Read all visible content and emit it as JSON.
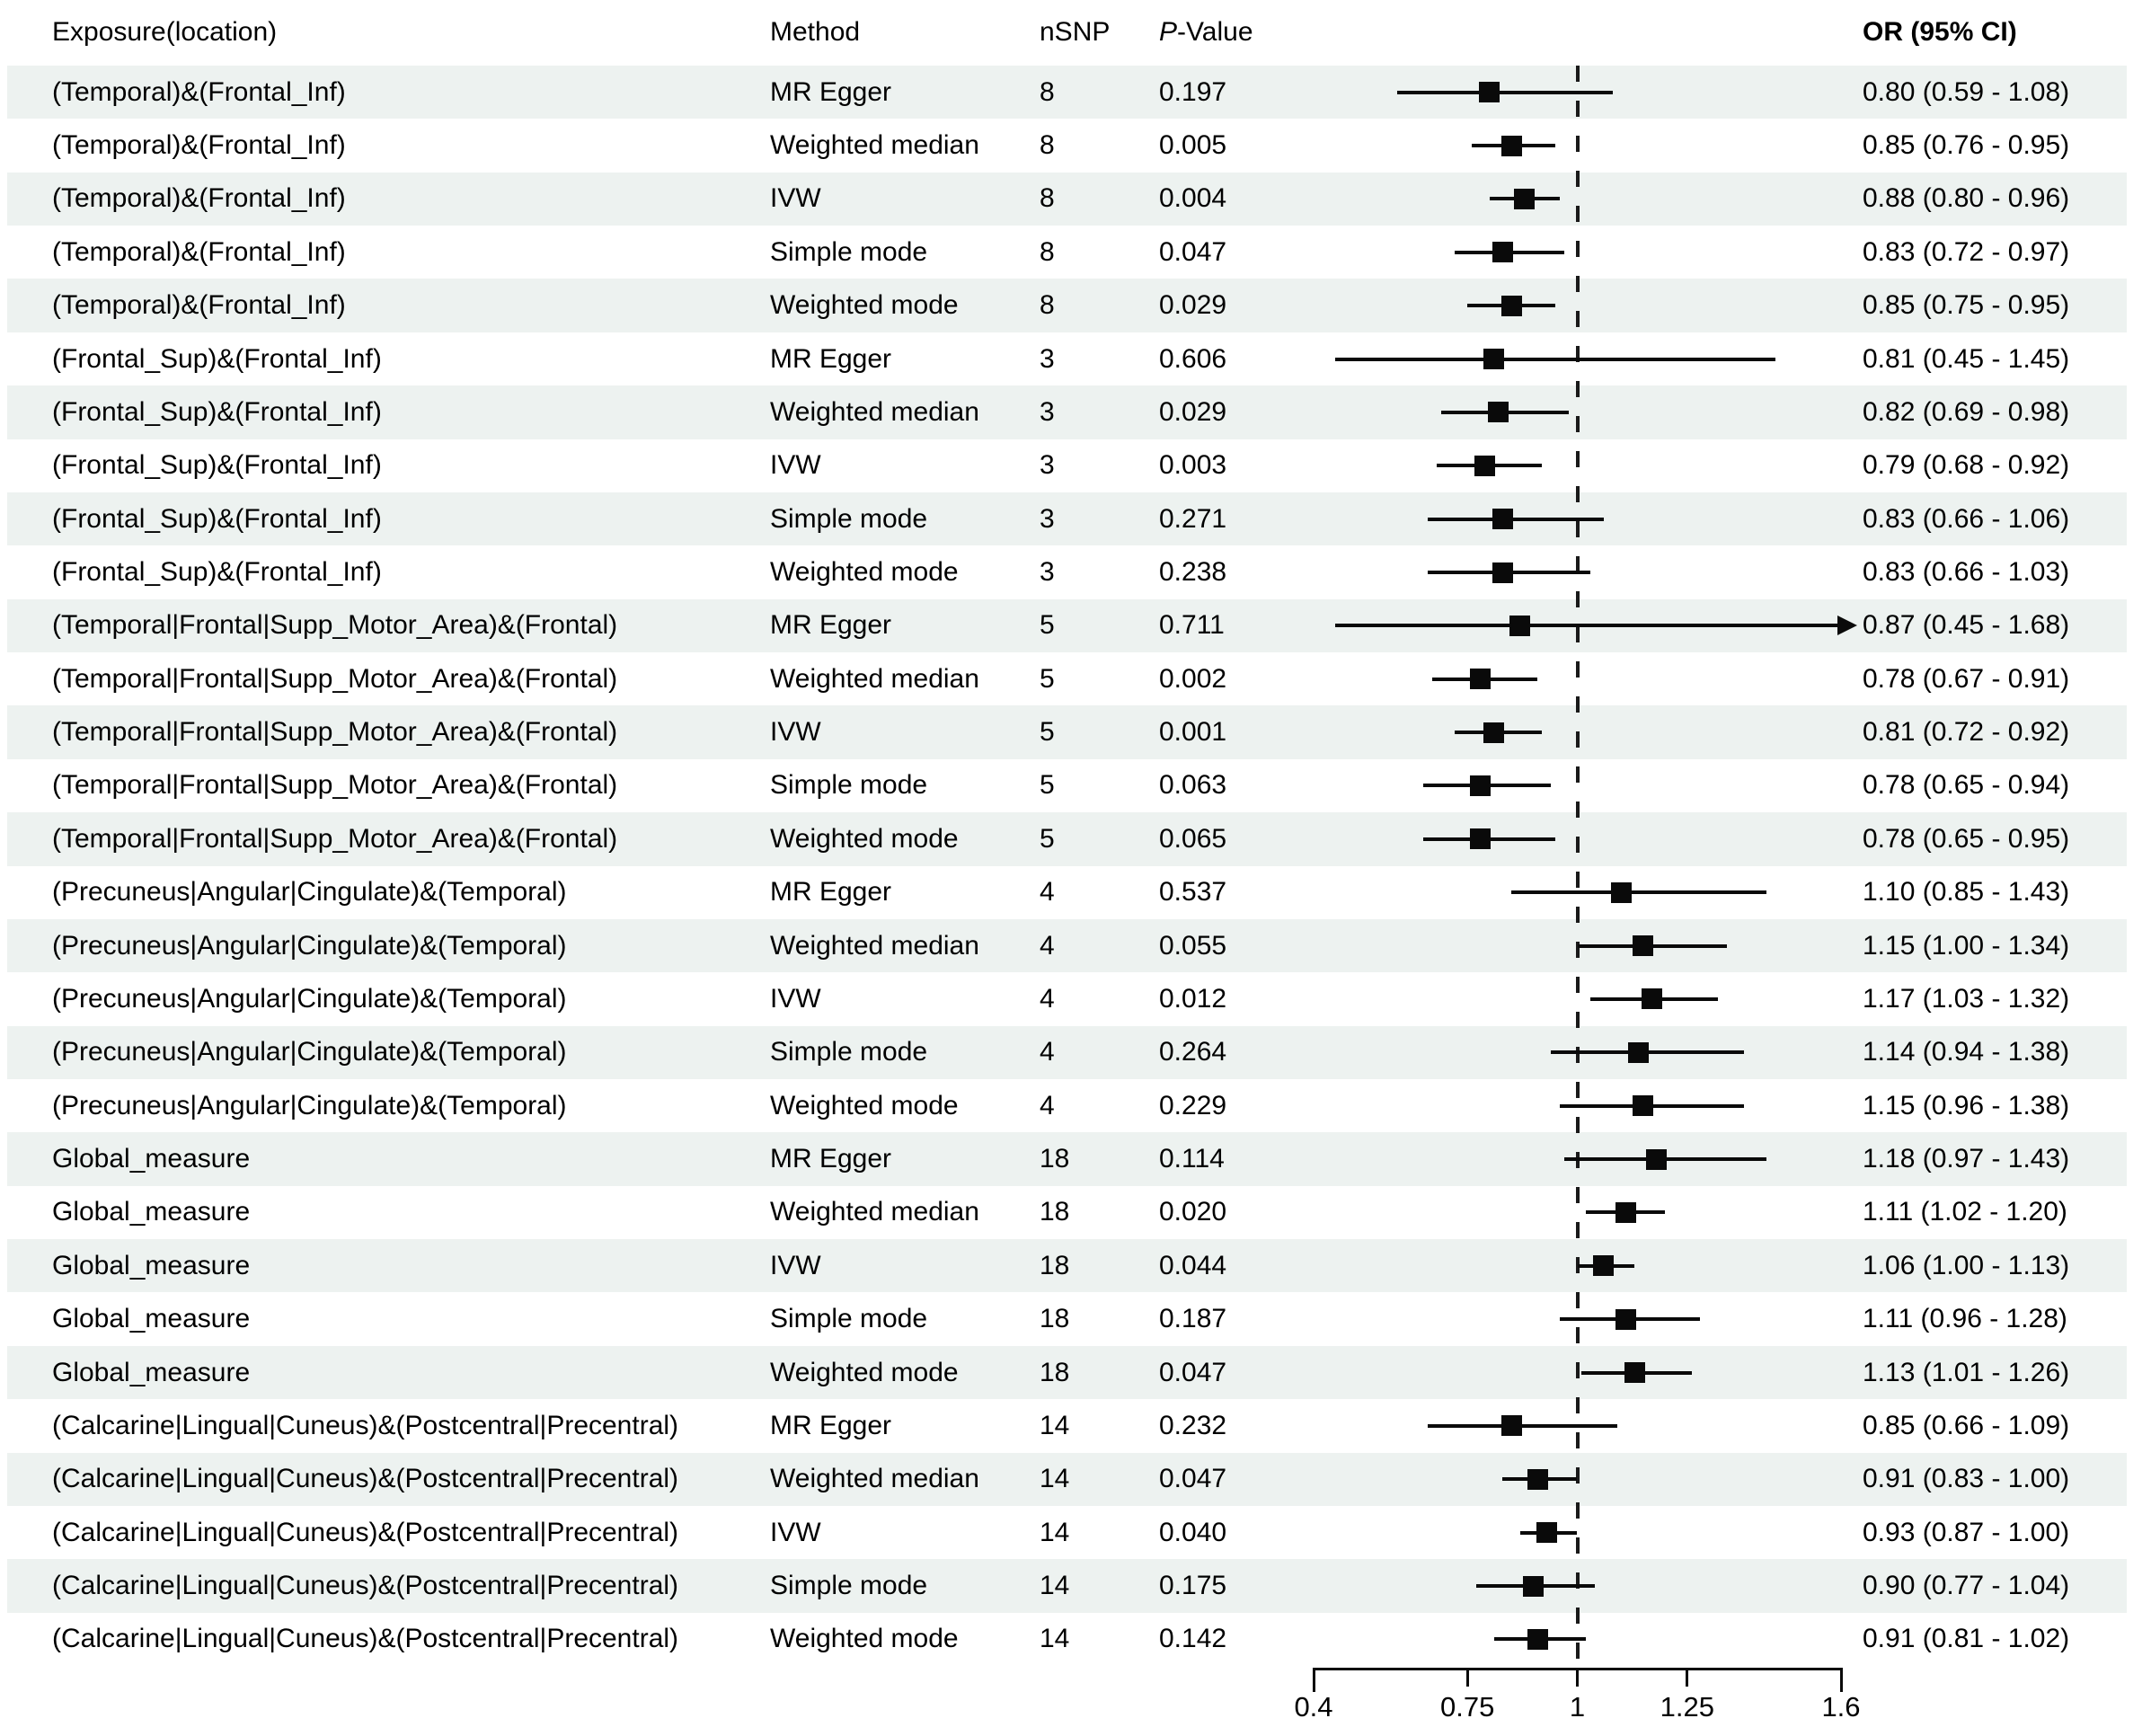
{
  "header": {
    "exposure": "Exposure(location)",
    "method": "Method",
    "nsnp": "nSNP",
    "pvalue_italic": "P",
    "pvalue_rest": "-Value",
    "or": "OR (95% CI)"
  },
  "chart_data": {
    "type": "forest",
    "x_min": 0.4,
    "x_max": 1.6,
    "reference_line": 1,
    "axis_ticks": [
      {
        "value": 0.4,
        "label": "0.4"
      },
      {
        "value": 0.75,
        "label": "0.75"
      },
      {
        "value": 1,
        "label": "1"
      },
      {
        "value": 1.25,
        "label": "1.25"
      },
      {
        "value": 1.6,
        "label": "1.6"
      }
    ],
    "stripe_color": "#EDF2F0",
    "marker_color": "#0a0a0a",
    "rows": [
      {
        "exposure": "(Temporal)&(Frontal_Inf)",
        "method": "MR Egger",
        "nsnp": "8",
        "pvalue": "0.197",
        "or": 0.8,
        "ci_low": 0.59,
        "ci_high": 1.08,
        "or_text": "0.80 (0.59 - 1.08)",
        "arrow": false
      },
      {
        "exposure": "(Temporal)&(Frontal_Inf)",
        "method": "Weighted median",
        "nsnp": "8",
        "pvalue": "0.005",
        "or": 0.85,
        "ci_low": 0.76,
        "ci_high": 0.95,
        "or_text": "0.85 (0.76 - 0.95)",
        "arrow": false
      },
      {
        "exposure": "(Temporal)&(Frontal_Inf)",
        "method": "IVW",
        "nsnp": "8",
        "pvalue": "0.004",
        "or": 0.88,
        "ci_low": 0.8,
        "ci_high": 0.96,
        "or_text": "0.88 (0.80 - 0.96)",
        "arrow": false
      },
      {
        "exposure": "(Temporal)&(Frontal_Inf)",
        "method": "Simple mode",
        "nsnp": "8",
        "pvalue": "0.047",
        "or": 0.83,
        "ci_low": 0.72,
        "ci_high": 0.97,
        "or_text": "0.83 (0.72 - 0.97)",
        "arrow": false
      },
      {
        "exposure": "(Temporal)&(Frontal_Inf)",
        "method": "Weighted mode",
        "nsnp": "8",
        "pvalue": "0.029",
        "or": 0.85,
        "ci_low": 0.75,
        "ci_high": 0.95,
        "or_text": "0.85 (0.75 - 0.95)",
        "arrow": false
      },
      {
        "exposure": "(Frontal_Sup)&(Frontal_Inf)",
        "method": "MR Egger",
        "nsnp": "3",
        "pvalue": "0.606",
        "or": 0.81,
        "ci_low": 0.45,
        "ci_high": 1.45,
        "or_text": "0.81 (0.45 - 1.45)",
        "arrow": false
      },
      {
        "exposure": "(Frontal_Sup)&(Frontal_Inf)",
        "method": "Weighted median",
        "nsnp": "3",
        "pvalue": "0.029",
        "or": 0.82,
        "ci_low": 0.69,
        "ci_high": 0.98,
        "or_text": "0.82 (0.69 - 0.98)",
        "arrow": false
      },
      {
        "exposure": "(Frontal_Sup)&(Frontal_Inf)",
        "method": "IVW",
        "nsnp": "3",
        "pvalue": "0.003",
        "or": 0.79,
        "ci_low": 0.68,
        "ci_high": 0.92,
        "or_text": "0.79 (0.68 - 0.92)",
        "arrow": false
      },
      {
        "exposure": "(Frontal_Sup)&(Frontal_Inf)",
        "method": "Simple mode",
        "nsnp": "3",
        "pvalue": "0.271",
        "or": 0.83,
        "ci_low": 0.66,
        "ci_high": 1.06,
        "or_text": "0.83 (0.66 - 1.06)",
        "arrow": false
      },
      {
        "exposure": "(Frontal_Sup)&(Frontal_Inf)",
        "method": "Weighted mode",
        "nsnp": "3",
        "pvalue": "0.238",
        "or": 0.83,
        "ci_low": 0.66,
        "ci_high": 1.03,
        "or_text": "0.83 (0.66 - 1.03)",
        "arrow": false
      },
      {
        "exposure": "(Temporal|Frontal|Supp_Motor_Area)&(Frontal)",
        "method": "MR Egger",
        "nsnp": "5",
        "pvalue": "0.711",
        "or": 0.87,
        "ci_low": 0.45,
        "ci_high": 1.68,
        "or_text": "0.87 (0.45 - 1.68)",
        "arrow": true
      },
      {
        "exposure": "(Temporal|Frontal|Supp_Motor_Area)&(Frontal)",
        "method": "Weighted median",
        "nsnp": "5",
        "pvalue": "0.002",
        "or": 0.78,
        "ci_low": 0.67,
        "ci_high": 0.91,
        "or_text": "0.78 (0.67 - 0.91)",
        "arrow": false
      },
      {
        "exposure": "(Temporal|Frontal|Supp_Motor_Area)&(Frontal)",
        "method": "IVW",
        "nsnp": "5",
        "pvalue": "0.001",
        "or": 0.81,
        "ci_low": 0.72,
        "ci_high": 0.92,
        "or_text": "0.81 (0.72 - 0.92)",
        "arrow": false
      },
      {
        "exposure": "(Temporal|Frontal|Supp_Motor_Area)&(Frontal)",
        "method": "Simple mode",
        "nsnp": "5",
        "pvalue": "0.063",
        "or": 0.78,
        "ci_low": 0.65,
        "ci_high": 0.94,
        "or_text": "0.78 (0.65 - 0.94)",
        "arrow": false
      },
      {
        "exposure": "(Temporal|Frontal|Supp_Motor_Area)&(Frontal)",
        "method": "Weighted mode",
        "nsnp": "5",
        "pvalue": "0.065",
        "or": 0.78,
        "ci_low": 0.65,
        "ci_high": 0.95,
        "or_text": "0.78 (0.65 - 0.95)",
        "arrow": false
      },
      {
        "exposure": "(Precuneus|Angular|Cingulate)&(Temporal)",
        "method": "MR Egger",
        "nsnp": "4",
        "pvalue": "0.537",
        "or": 1.1,
        "ci_low": 0.85,
        "ci_high": 1.43,
        "or_text": "1.10 (0.85 - 1.43)",
        "arrow": false
      },
      {
        "exposure": "(Precuneus|Angular|Cingulate)&(Temporal)",
        "method": "Weighted median",
        "nsnp": "4",
        "pvalue": "0.055",
        "or": 1.15,
        "ci_low": 1.0,
        "ci_high": 1.34,
        "or_text": "1.15 (1.00 - 1.34)",
        "arrow": false
      },
      {
        "exposure": "(Precuneus|Angular|Cingulate)&(Temporal)",
        "method": "IVW",
        "nsnp": "4",
        "pvalue": "0.012",
        "or": 1.17,
        "ci_low": 1.03,
        "ci_high": 1.32,
        "or_text": "1.17 (1.03 - 1.32)",
        "arrow": false
      },
      {
        "exposure": "(Precuneus|Angular|Cingulate)&(Temporal)",
        "method": "Simple mode",
        "nsnp": "4",
        "pvalue": "0.264",
        "or": 1.14,
        "ci_low": 0.94,
        "ci_high": 1.38,
        "or_text": "1.14 (0.94 - 1.38)",
        "arrow": false
      },
      {
        "exposure": "(Precuneus|Angular|Cingulate)&(Temporal)",
        "method": "Weighted mode",
        "nsnp": "4",
        "pvalue": "0.229",
        "or": 1.15,
        "ci_low": 0.96,
        "ci_high": 1.38,
        "or_text": "1.15 (0.96 - 1.38)",
        "arrow": false
      },
      {
        "exposure": "Global_measure",
        "method": "MR Egger",
        "nsnp": "18",
        "pvalue": "0.114",
        "or": 1.18,
        "ci_low": 0.97,
        "ci_high": 1.43,
        "or_text": "1.18 (0.97 - 1.43)",
        "arrow": false
      },
      {
        "exposure": "Global_measure",
        "method": "Weighted median",
        "nsnp": "18",
        "pvalue": "0.020",
        "or": 1.11,
        "ci_low": 1.02,
        "ci_high": 1.2,
        "or_text": "1.11 (1.02 - 1.20)",
        "arrow": false
      },
      {
        "exposure": "Global_measure",
        "method": "IVW",
        "nsnp": "18",
        "pvalue": "0.044",
        "or": 1.06,
        "ci_low": 1.0,
        "ci_high": 1.13,
        "or_text": "1.06 (1.00 - 1.13)",
        "arrow": false
      },
      {
        "exposure": "Global_measure",
        "method": "Simple mode",
        "nsnp": "18",
        "pvalue": "0.187",
        "or": 1.11,
        "ci_low": 0.96,
        "ci_high": 1.28,
        "or_text": "1.11 (0.96 - 1.28)",
        "arrow": false
      },
      {
        "exposure": "Global_measure",
        "method": "Weighted mode",
        "nsnp": "18",
        "pvalue": "0.047",
        "or": 1.13,
        "ci_low": 1.01,
        "ci_high": 1.26,
        "or_text": "1.13 (1.01 - 1.26)",
        "arrow": false
      },
      {
        "exposure": "(Calcarine|Lingual|Cuneus)&(Postcentral|Precentral)",
        "method": "MR Egger",
        "nsnp": "14",
        "pvalue": "0.232",
        "or": 0.85,
        "ci_low": 0.66,
        "ci_high": 1.09,
        "or_text": "0.85 (0.66 - 1.09)",
        "arrow": false
      },
      {
        "exposure": "(Calcarine|Lingual|Cuneus)&(Postcentral|Precentral)",
        "method": "Weighted median",
        "nsnp": "14",
        "pvalue": "0.047",
        "or": 0.91,
        "ci_low": 0.83,
        "ci_high": 1.0,
        "or_text": "0.91 (0.83 - 1.00)",
        "arrow": false
      },
      {
        "exposure": "(Calcarine|Lingual|Cuneus)&(Postcentral|Precentral)",
        "method": "IVW",
        "nsnp": "14",
        "pvalue": "0.040",
        "or": 0.93,
        "ci_low": 0.87,
        "ci_high": 1.0,
        "or_text": "0.93 (0.87 - 1.00)",
        "arrow": false
      },
      {
        "exposure": "(Calcarine|Lingual|Cuneus)&(Postcentral|Precentral)",
        "method": "Simple mode",
        "nsnp": "14",
        "pvalue": "0.175",
        "or": 0.9,
        "ci_low": 0.77,
        "ci_high": 1.04,
        "or_text": "0.90 (0.77 - 1.04)",
        "arrow": false
      },
      {
        "exposure": "(Calcarine|Lingual|Cuneus)&(Postcentral|Precentral)",
        "method": "Weighted mode",
        "nsnp": "14",
        "pvalue": "0.142",
        "or": 0.91,
        "ci_low": 0.81,
        "ci_high": 1.02,
        "or_text": "0.91 (0.81 - 1.02)",
        "arrow": false
      }
    ]
  }
}
